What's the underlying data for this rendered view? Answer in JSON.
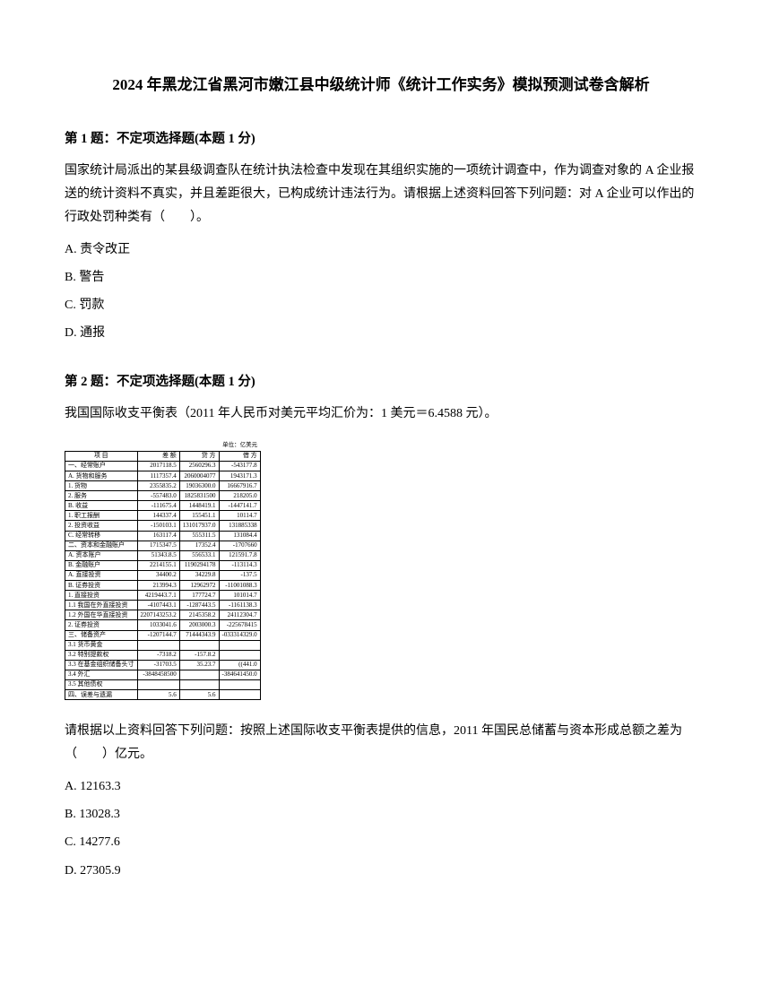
{
  "title": "2024 年黑龙江省黑河市嫩江县中级统计师《统计工作实务》模拟预测试卷含解析",
  "q1": {
    "header": "第 1 题：不定项选择题(本题 1 分)",
    "text": "国家统计局派出的某县级调查队在统计执法检查中发现在其组织实施的一项统计调查中，作为调查对象的 A 企业报送的统计资料不真实，并且差距很大，已构成统计违法行为。请根据上述资料回答下列问题：对 A 企业可以作出的行政处罚种类有（　　）。",
    "options": {
      "a": "A. 责令改正",
      "b": "B. 警告",
      "c": "C. 罚款",
      "d": "D. 通报"
    }
  },
  "q2": {
    "header": "第 2 题：不定项选择题(本题 1 分)",
    "intro": "我国国际收支平衡表（2011 年人民币对美元平均汇价为：1 美元＝6.4588 元）。",
    "text": "请根据以上资料回答下列问题：按照上述国际收支平衡表提供的信息，2011 年国民总储蓄与资本形成总额之差为（　　）亿元。",
    "options": {
      "a": "A. 12163.3",
      "b": "B. 13028.3",
      "c": "C. 14277.6",
      "d": "D. 27305.9"
    },
    "table": {
      "unit": "单位：亿美元",
      "header": [
        "项 目",
        "差 额",
        "贷 方",
        "借 方"
      ],
      "rows": [
        [
          "一、经常账户",
          "2017118.5",
          "2560296.3",
          "-543177.8"
        ],
        [
          "A. 货物和服务",
          "1117357.4",
          "2060004077",
          "1943171.3"
        ],
        [
          "1. 货物",
          "2355835.2",
          "19036300.0",
          "16667916.7"
        ],
        [
          "2. 服务",
          "-557483.0",
          "1825831500",
          "218205.0"
        ],
        [
          "B. 收益",
          "-111675.4",
          "1448419.1",
          "-1447141.7"
        ],
        [
          "1. 职工报酬",
          "144337.4",
          "155451.1",
          "10114.7"
        ],
        [
          "2. 投资收益",
          "-150103.1",
          "131017937.0",
          "131885338"
        ],
        [
          "C. 经常转移",
          "163117.4",
          "555311.5",
          "131084.4"
        ],
        [
          "二、资本和金融账户",
          "1715347.5",
          "17352.4",
          "-1707660"
        ],
        [
          "A. 资本账户",
          "51343.8.5",
          "556533.1",
          "121591.7.8"
        ],
        [
          "B. 金融账户",
          "2214155.1",
          "1190294178",
          "-113114.3"
        ],
        [
          "A. 直接投资",
          "34400.2",
          "34229.8",
          "-137.5"
        ],
        [
          "B. 证券投资",
          "213994.3",
          "12962972",
          "-11001088.3"
        ],
        [
          "1. 直接投资",
          "4219443.7.1",
          "177724.7",
          "101014.7"
        ],
        [
          "1.1 我国在外直接投资",
          "-4107443.1",
          "-1287443.5",
          "-1161138.3"
        ],
        [
          "1.2 外国在华直接投资",
          "2207143253.2",
          "2145358.2",
          "24112304.7"
        ],
        [
          "2. 证券投资",
          "1033041.6",
          "2003000.3",
          "-225678415"
        ],
        [
          "三、储备资产",
          "-1207144.7",
          "71444343.9",
          "-033314329.0"
        ],
        [
          "3.1 货币黄金",
          "",
          "",
          ""
        ],
        [
          "3.2 特别提款权",
          "-7318.2",
          "-157.8.2",
          ""
        ],
        [
          "3.3 在基金组织储备头寸",
          "-31703.5",
          "35.23.7",
          "((441.0"
        ],
        [
          "3.4 外汇",
          "-3848458500",
          "",
          "-384641450.0"
        ],
        [
          "3.5 其他债权",
          "",
          "",
          ""
        ],
        [
          "四、误差与遗漏",
          "5.6",
          "5.6",
          ""
        ]
      ]
    }
  }
}
